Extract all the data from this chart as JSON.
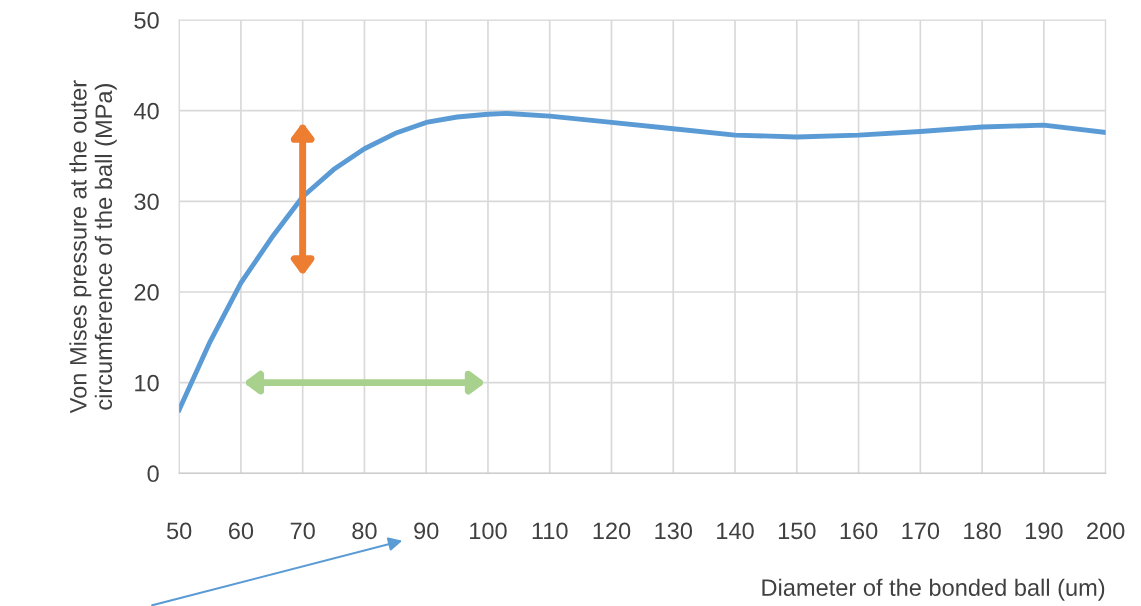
{
  "chart_data": {
    "type": "line",
    "xlabel": "Diameter of the bonded ball (um)",
    "ylabel": "Von Mises pressure at the outer\ncircumference of the ball (MPa)",
    "x": [
      50,
      55,
      60,
      65,
      70,
      75,
      80,
      85,
      90,
      95,
      100,
      103,
      110,
      120,
      130,
      140,
      150,
      160,
      170,
      180,
      190,
      200
    ],
    "series": [
      {
        "color": "#5b9bd5",
        "values": [
          7,
          14.5,
          21,
          26,
          30.5,
          33.5,
          35.8,
          37.5,
          38.7,
          39.3,
          39.6,
          39.7,
          39.4,
          38.7,
          38.0,
          37.3,
          37.1,
          37.3,
          37.7,
          38.2,
          38.4,
          37.6
        ]
      }
    ],
    "xlim": [
      50,
      200
    ],
    "xticks": [
      50,
      60,
      70,
      80,
      90,
      100,
      110,
      120,
      130,
      140,
      150,
      160,
      170,
      180,
      190,
      200
    ],
    "ylim": [
      0,
      50
    ],
    "yticks": [
      0,
      10,
      20,
      30,
      40,
      50
    ],
    "grid": true,
    "marker": "none",
    "line_style": "solid"
  }
}
